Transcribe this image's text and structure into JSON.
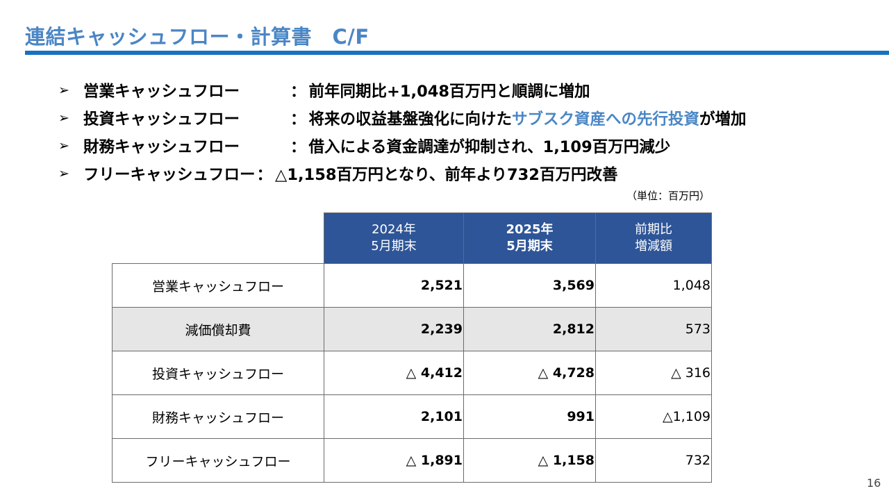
{
  "title": "連結キャッシュフロー・計算書　C/F",
  "bullets": [
    {
      "label": "営業キャッシュフロー",
      "sep": "：",
      "text_before": "前年同期比+1,048百万円と順調に増加",
      "highlight": "",
      "text_after": ""
    },
    {
      "label": "投資キャッシュフロー",
      "sep": "：",
      "text_before": "将来の収益基盤強化に向けた",
      "highlight": "サブスク資産への先行投資",
      "text_after": "が増加"
    },
    {
      "label": "財務キャッシュフロー",
      "sep": "：",
      "text_before": "借入による資金調達が抑制され、1,109百万円減少",
      "highlight": "",
      "text_after": ""
    },
    {
      "label": "フリーキャッシュフロー",
      "sep": "：",
      "text_before": "△1,158百万円となり、前年より732百万円改善",
      "highlight": "",
      "text_after": ""
    }
  ],
  "unit_note": "（単位：百万円）",
  "table": {
    "headers": [
      {
        "line1": "2024年",
        "line2": "5月期末"
      },
      {
        "line1": "2025年",
        "line2": "5月期末"
      },
      {
        "line1": "前期比",
        "line2": "増減額"
      }
    ],
    "rows": [
      {
        "name": "営業キャッシュフロー",
        "v2024": "2,521",
        "v2025": "3,569",
        "diff": "1,048"
      },
      {
        "name": "減価償却費",
        "v2024": "2,239",
        "v2025": "2,812",
        "diff": "573"
      },
      {
        "name": "投資キャッシュフロー",
        "v2024": "△ 4,412",
        "v2025": "△ 4,728",
        "diff": "△ 316"
      },
      {
        "name": "財務キャッシュフロー",
        "v2024": "2,101",
        "v2025": "991",
        "diff": "△1,109"
      },
      {
        "name": "フリーキャッシュフロー",
        "v2024": "△ 1,891",
        "v2025": "△ 1,158",
        "diff": "732"
      }
    ]
  },
  "page_number": "16",
  "colors": {
    "title": "#4a86c5",
    "title_bar": "#1a70c0",
    "header_fill": "#2e5597",
    "highlight": "#4a86c5",
    "shaded_row": "#e6e6e6"
  }
}
